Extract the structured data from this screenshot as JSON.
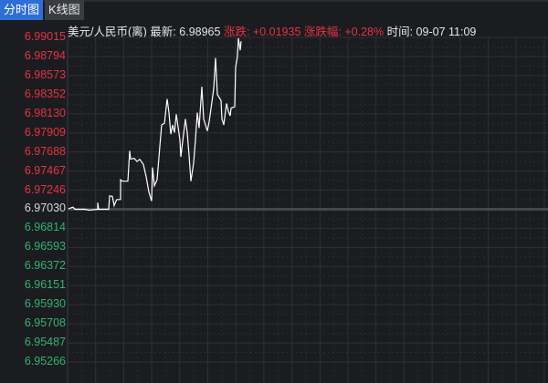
{
  "tabs": [
    {
      "label": "分时图",
      "active": true
    },
    {
      "label": "K线图",
      "active": false
    }
  ],
  "info": {
    "symbol": "美元/人民币(离)",
    "latest_label": "最新:",
    "latest_value": "6.98965",
    "change_label": "涨跌:",
    "change_value": "+0.01935",
    "change_pct_label": "涨跌幅:",
    "change_pct_value": "+0.28%",
    "time_label": "时间:",
    "time_value": "09-07 11:09"
  },
  "colors": {
    "background": "#1b1c20",
    "up": "#e5333f",
    "down": "#2fb56d",
    "base": "#d8d8d8",
    "line": "#ffffff",
    "active_tab": "#2e6fd6"
  },
  "chart_data": {
    "type": "line",
    "base_price": 6.9703,
    "ylim": [
      6.95266,
      6.99015
    ],
    "y_ticks": [
      "6.99015",
      "6.98794",
      "6.98573",
      "6.98352",
      "6.98130",
      "6.97909",
      "6.97688",
      "6.97467",
      "6.97246",
      "6.97030",
      "6.96814",
      "6.96593",
      "6.96372",
      "6.96151",
      "6.95930",
      "6.95708",
      "6.95487",
      "6.95266"
    ],
    "grid": true,
    "series": [
      {
        "points": [
          [
            0,
            6.97037
          ],
          [
            5,
            6.97054
          ],
          [
            7,
            6.9703
          ],
          [
            18,
            6.9703
          ],
          [
            23,
            6.97019
          ],
          [
            32,
            6.9703
          ],
          [
            32,
            6.97107
          ],
          [
            33,
            6.9703
          ],
          [
            44,
            6.9703
          ],
          [
            45,
            6.97185
          ],
          [
            48,
            6.97178
          ],
          [
            50,
            6.97072
          ],
          [
            52,
            6.97125
          ],
          [
            53,
            6.97143
          ],
          [
            57,
            6.97143
          ],
          [
            57,
            6.97371
          ],
          [
            59,
            6.97354
          ],
          [
            61,
            6.97354
          ],
          [
            65,
            6.97354
          ],
          [
            67,
            6.97705
          ],
          [
            68,
            6.9761
          ],
          [
            72,
            6.97617
          ],
          [
            75,
            6.97582
          ],
          [
            78,
            6.97607
          ],
          [
            82,
            6.97547
          ],
          [
            85,
            6.97407
          ],
          [
            88,
            6.9723
          ],
          [
            91,
            6.97125
          ],
          [
            92,
            6.97512
          ],
          [
            94,
            6.97301
          ],
          [
            97,
            6.97371
          ],
          [
            100,
            6.97758
          ],
          [
            102,
            6.98004
          ],
          [
            105,
            6.98022
          ],
          [
            108,
            6.98303
          ],
          [
            110,
            6.98145
          ],
          [
            112,
            6.97898
          ],
          [
            114,
            6.98004
          ],
          [
            116,
            6.97916
          ],
          [
            118,
            6.98127
          ],
          [
            122,
            6.97829
          ],
          [
            123,
            6.97635
          ],
          [
            125,
            6.97811
          ],
          [
            128,
            6.98074
          ],
          [
            130,
            6.97916
          ],
          [
            132,
            6.97652
          ],
          [
            134,
            6.97354
          ],
          [
            137,
            6.97565
          ],
          [
            139,
            6.97829
          ],
          [
            141,
            6.98145
          ],
          [
            143,
            6.97969
          ],
          [
            146,
            6.98444
          ],
          [
            148,
            6.98074
          ],
          [
            152,
            6.97934
          ],
          [
            154,
            6.9804
          ],
          [
            157,
            6.98267
          ],
          [
            159,
            6.98426
          ],
          [
            161,
            6.98778
          ],
          [
            163,
            6.98356
          ],
          [
            167,
            6.98285
          ],
          [
            168,
            6.98074
          ],
          [
            170,
            6.98004
          ],
          [
            173,
            6.98251
          ],
          [
            175,
            6.98162
          ],
          [
            177,
            6.98109
          ],
          [
            178,
            6.98198
          ],
          [
            182,
            6.98215
          ],
          [
            183,
            6.98673
          ],
          [
            185,
            6.98795
          ],
          [
            186,
            6.99006
          ],
          [
            188,
            6.98866
          ],
          [
            189,
            6.98971
          ]
        ]
      }
    ]
  }
}
